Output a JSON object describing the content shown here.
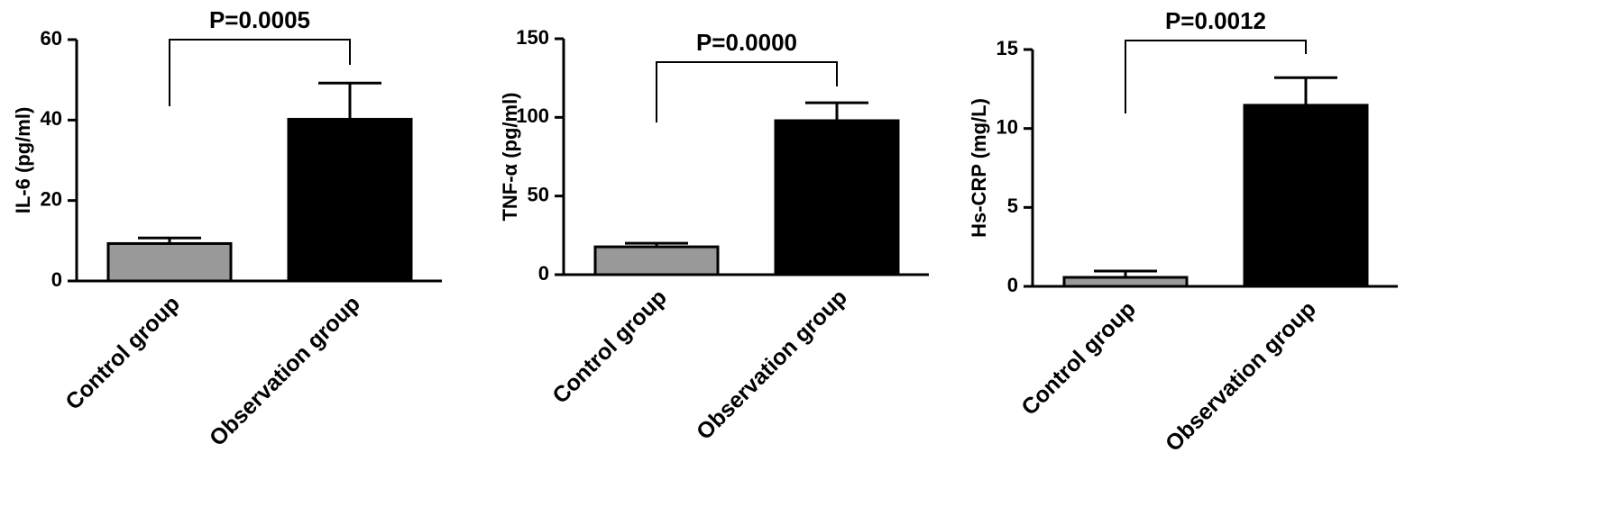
{
  "chart_data": [
    {
      "type": "bar",
      "y_label": "IL-6 (pg/ml)",
      "annotation": "P=0.0005",
      "categories": [
        "Control group",
        "Observation group"
      ],
      "values": [
        9.3,
        40.2
      ],
      "errors": [
        1.4,
        9.0
      ],
      "colors": [
        "#999999",
        "#000000"
      ],
      "ylim": [
        0,
        60
      ],
      "yticks": [
        0,
        20,
        40,
        60
      ]
    },
    {
      "type": "bar",
      "y_label": "TNF-α (pg/ml)",
      "annotation": "P=0.0000",
      "categories": [
        "Control group",
        "Observation group"
      ],
      "values": [
        17.7,
        97.9
      ],
      "errors": [
        2.3,
        11.4
      ],
      "colors": [
        "#999999",
        "#000000"
      ],
      "ylim": [
        0,
        150
      ],
      "yticks": [
        0,
        50,
        100,
        150
      ]
    },
    {
      "type": "bar",
      "y_label": "Hs-CRP (mg/L)",
      "annotation": "P=0.0012",
      "categories": [
        "Control group",
        "Observation group"
      ],
      "values": [
        0.57,
        11.47
      ],
      "errors": [
        0.4,
        1.75
      ],
      "colors": [
        "#999999",
        "#000000"
      ],
      "ylim": [
        0,
        15
      ],
      "yticks": [
        0,
        5,
        10,
        15
      ]
    }
  ]
}
